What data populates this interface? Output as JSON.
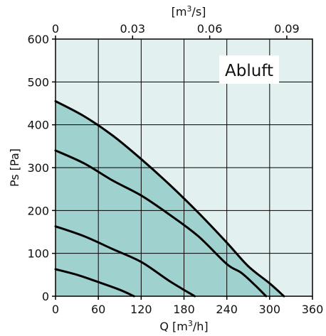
{
  "chart_data": {
    "type": "area",
    "title": "",
    "xlabel": "Q [m3/h]",
    "ylabel": "Ps [Pa]",
    "x2label": "[m3/s]",
    "annotation": "Abluft",
    "xlim": [
      0,
      360
    ],
    "ylim": [
      0,
      600
    ],
    "x2lim": [
      0,
      0.1
    ],
    "x_ticks": [
      0,
      60,
      120,
      180,
      240,
      300,
      360
    ],
    "y_ticks": [
      0,
      100,
      200,
      300,
      400,
      500,
      600
    ],
    "x2_ticks": [
      "0",
      "0.03",
      "0.06",
      "0.09"
    ],
    "x2_tick_values": [
      0,
      0.03,
      0.06,
      0.09
    ],
    "grid": true,
    "colors": {
      "plot_background": "#e2f0f0",
      "fill": "#9fd1cf",
      "curve": "#000000",
      "grid": "#000000"
    },
    "series": [
      {
        "x": [
          0,
          40,
          80,
          120,
          160,
          200,
          240,
          270,
          300,
          320
        ],
        "y": [
          455,
          420,
          375,
          320,
          260,
          195,
          125,
          70,
          30,
          0
        ]
      },
      {
        "x": [
          0,
          40,
          80,
          120,
          160,
          200,
          240,
          260,
          280,
          295
        ],
        "y": [
          340,
          310,
          270,
          235,
          190,
          140,
          75,
          55,
          25,
          0
        ]
      },
      {
        "x": [
          0,
          40,
          80,
          120,
          160,
          195
        ],
        "y": [
          163,
          140,
          110,
          80,
          35,
          0
        ]
      },
      {
        "x": [
          0,
          30,
          60,
          90,
          110
        ],
        "y": [
          63,
          50,
          33,
          15,
          0
        ]
      }
    ]
  }
}
